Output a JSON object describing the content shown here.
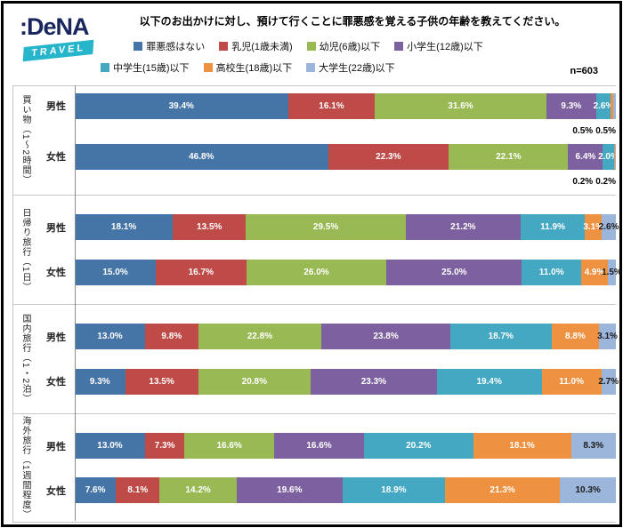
{
  "logo": {
    "brand": ":DeNA",
    "sub": "TRAVEL"
  },
  "title": "以下のお出かけに対し、預けて行くことに罪悪感を覚える子供の年齢を教えてください。",
  "sample": "n=603",
  "chart_data": {
    "type": "bar",
    "orientation": "horizontal",
    "stacked": true,
    "unit": "%",
    "xlim": [
      0,
      100
    ],
    "legend_position": "top",
    "series": [
      "罪悪感はない",
      "乳児(1歳未満)",
      "幼児(6歳)以下",
      "小学生(12歳)以下",
      "中学生(15歳)以下",
      "高校生(18歳)以下",
      "大学生(22歳)以下"
    ],
    "colors": [
      "#4575A7",
      "#BE4B48",
      "#98B954",
      "#7D60A0",
      "#44A8C2",
      "#EE9140",
      "#9CB5DA"
    ],
    "label_colors": [
      "#ffffff",
      "#ffffff",
      "#ffffff",
      "#ffffff",
      "#ffffff",
      "#ffffff",
      "#1a1a1a"
    ],
    "groups": [
      {
        "label": "買い物（1～2時間）",
        "rows": [
          {
            "label": "男性",
            "values": [
              39.4,
              16.1,
              31.6,
              9.3,
              2.6,
              0.5,
              0.5
            ],
            "outside_from": 5
          },
          {
            "label": "女性",
            "values": [
              46.8,
              22.3,
              22.1,
              6.4,
              2.0,
              0.2,
              0.2
            ],
            "outside_from": 5
          }
        ]
      },
      {
        "label": "日帰り旅行（1日）",
        "rows": [
          {
            "label": "男性",
            "values": [
              18.1,
              13.5,
              29.5,
              21.2,
              11.9,
              3.1,
              2.6
            ]
          },
          {
            "label": "女性",
            "values": [
              15.0,
              16.7,
              26.0,
              25.0,
              11.0,
              4.9,
              1.5
            ]
          }
        ]
      },
      {
        "label": "国内旅行（1・2泊）",
        "rows": [
          {
            "label": "男性",
            "values": [
              13.0,
              9.8,
              22.8,
              23.8,
              18.7,
              8.8,
              3.1
            ]
          },
          {
            "label": "女性",
            "values": [
              9.3,
              13.5,
              20.8,
              23.3,
              19.4,
              11.0,
              2.7
            ]
          }
        ]
      },
      {
        "label": "海外旅行（1週間程度）",
        "rows": [
          {
            "label": "男性",
            "values": [
              13.0,
              7.3,
              16.6,
              16.6,
              20.2,
              18.1,
              8.3
            ]
          },
          {
            "label": "女性",
            "values": [
              7.6,
              8.1,
              14.2,
              19.6,
              18.9,
              21.3,
              10.3
            ]
          }
        ]
      }
    ]
  }
}
